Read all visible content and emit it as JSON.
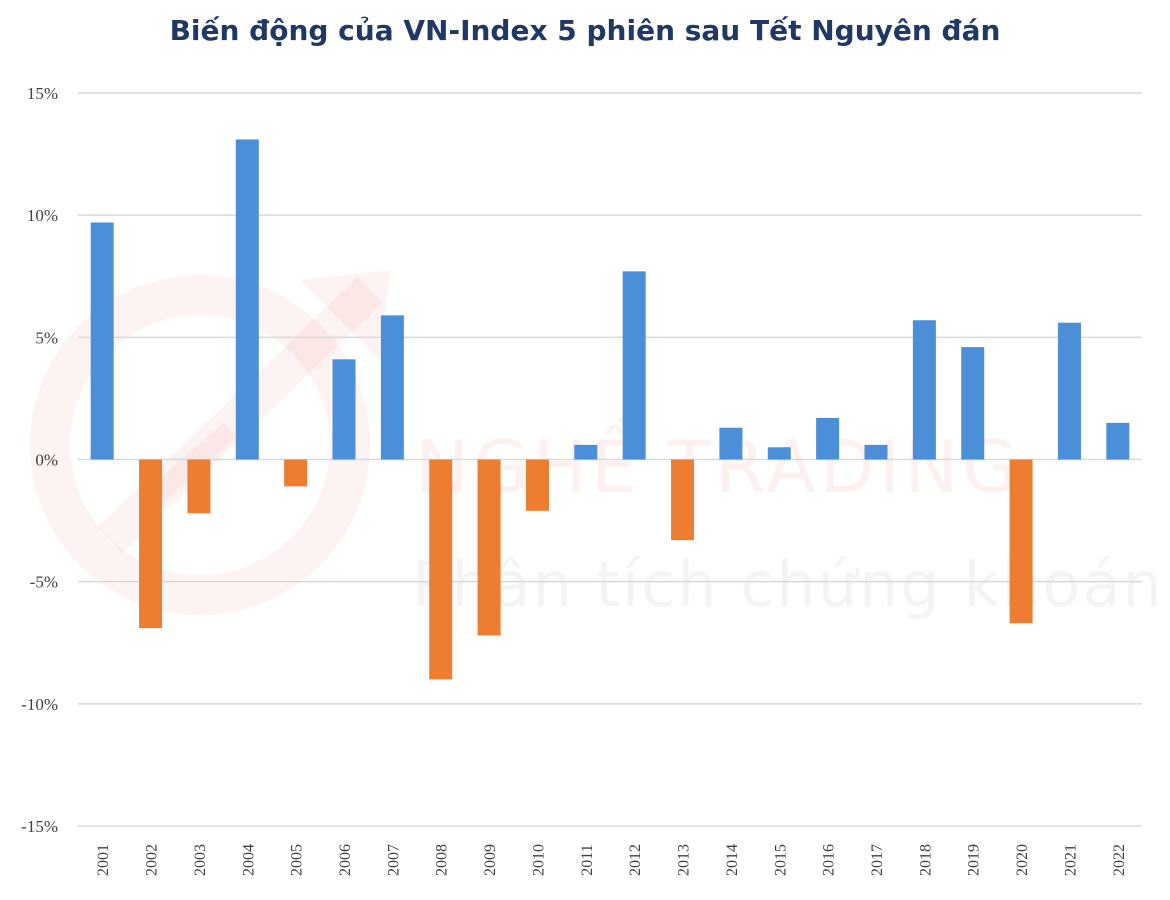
{
  "chart_data": {
    "type": "bar",
    "title": "Biến động của VN-Index 5 phiên sau Tết Nguyên đán",
    "xlabel": "",
    "ylabel": "",
    "categories": [
      "2001",
      "2002",
      "2003",
      "2004",
      "2005",
      "2006",
      "2007",
      "2008",
      "2009",
      "2010",
      "2011",
      "2012",
      "2013",
      "2014",
      "2015",
      "2016",
      "2017",
      "2018",
      "2019",
      "2020",
      "2021",
      "2022"
    ],
    "values": [
      9.7,
      -6.9,
      -2.2,
      13.1,
      -1.1,
      4.1,
      5.9,
      -9.0,
      -7.2,
      -2.1,
      0.6,
      7.7,
      -3.3,
      1.3,
      0.5,
      1.7,
      0.6,
      5.7,
      4.6,
      -6.7,
      5.6,
      1.5
    ],
    "ylim": [
      -15,
      15
    ],
    "yticks": [
      15,
      10,
      5,
      0,
      -5,
      -10,
      -15
    ],
    "ytick_labels": [
      "15%",
      "10%",
      "5%",
      "0%",
      "-5%",
      "-10%",
      "-15%"
    ],
    "grid": true,
    "legend": "none",
    "colors": {
      "positive": "#4a8fd8",
      "negative": "#ed7d31",
      "grid": "#d9d9d9",
      "title": "#1f3864"
    }
  },
  "watermark": {
    "brand": "NGHỀ TRADING",
    "tagline": "Phân tích chứng khoán"
  }
}
